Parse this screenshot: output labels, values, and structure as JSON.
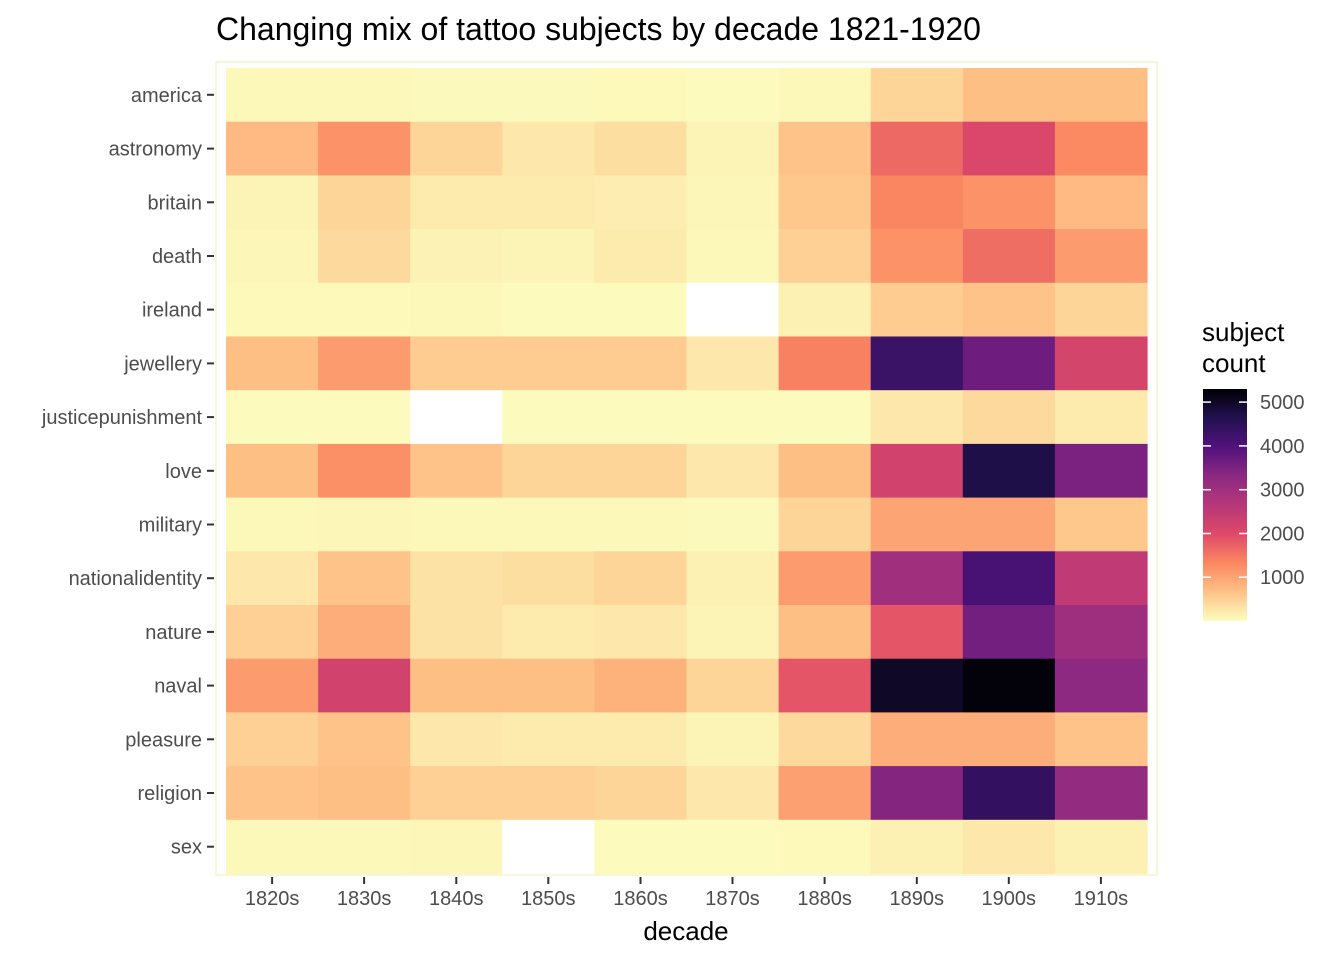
{
  "chart_data": {
    "type": "heatmap",
    "title": "Changing mix of tattoo subjects by decade 1821-1920",
    "xlabel": "decade",
    "ylabel": "",
    "x": [
      "1820s",
      "1830s",
      "1840s",
      "1850s",
      "1860s",
      "1870s",
      "1880s",
      "1890s",
      "1900s",
      "1910s"
    ],
    "y": [
      "america",
      "astronomy",
      "britain",
      "death",
      "ireland",
      "jewellery",
      "justicepunishment",
      "love",
      "military",
      "nationalidentity",
      "nature",
      "naval",
      "pleasure",
      "religion",
      "sex"
    ],
    "values": [
      [
        60,
        60,
        40,
        40,
        50,
        20,
        60,
        450,
        700,
        700
      ],
      [
        750,
        1200,
        450,
        250,
        350,
        100,
        650,
        1650,
        2050,
        1300
      ],
      [
        100,
        450,
        200,
        200,
        180,
        80,
        600,
        1350,
        1200,
        750
      ],
      [
        80,
        400,
        120,
        100,
        200,
        60,
        500,
        1200,
        1600,
        1100
      ],
      [
        50,
        50,
        60,
        20,
        30,
        null,
        150,
        550,
        650,
        450
      ],
      [
        700,
        1100,
        550,
        550,
        550,
        250,
        1400,
        4300,
        3650,
        2150
      ],
      [
        30,
        30,
        null,
        20,
        20,
        20,
        30,
        250,
        400,
        200
      ],
      [
        700,
        1250,
        650,
        450,
        450,
        250,
        700,
        2200,
        4700,
        3500
      ],
      [
        60,
        80,
        60,
        60,
        60,
        40,
        450,
        1000,
        1000,
        600
      ],
      [
        250,
        650,
        300,
        350,
        450,
        150,
        1100,
        3000,
        4100,
        2500
      ],
      [
        500,
        900,
        300,
        200,
        250,
        100,
        700,
        1850,
        3600,
        3050
      ],
      [
        1100,
        2200,
        700,
        700,
        850,
        450,
        1850,
        5000,
        5250,
        3300
      ],
      [
        500,
        650,
        250,
        200,
        200,
        100,
        400,
        900,
        900,
        650
      ],
      [
        650,
        700,
        500,
        500,
        450,
        250,
        1050,
        3400,
        4400,
        3200
      ],
      [
        60,
        60,
        80,
        null,
        30,
        30,
        50,
        150,
        250,
        150
      ]
    ],
    "value_range": [
      0,
      5300
    ],
    "colorscale": [
      "#fcfdbf",
      "#fec287",
      "#fb8861",
      "#de4968",
      "#b73779",
      "#8c2981",
      "#51127c",
      "#221150",
      "#000004"
    ],
    "missing_color": "#ffffff",
    "legend": {
      "title_line1": "subject",
      "title_line2": "count",
      "ticks": [
        1000,
        2000,
        3000,
        4000,
        5000
      ],
      "placement": "right"
    }
  }
}
